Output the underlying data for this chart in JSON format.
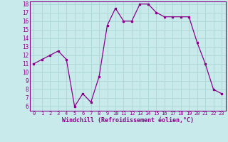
{
  "x": [
    0,
    1,
    2,
    3,
    4,
    5,
    6,
    7,
    8,
    9,
    10,
    11,
    12,
    13,
    14,
    15,
    16,
    17,
    18,
    19,
    20,
    21,
    22,
    23
  ],
  "y": [
    11,
    11.5,
    12,
    12.5,
    11.5,
    6,
    7.5,
    6.5,
    9.5,
    15.5,
    17.5,
    16,
    16,
    18,
    18,
    17,
    16.5,
    16.5,
    16.5,
    16.5,
    13.5,
    11,
    8,
    7.5
  ],
  "line_color": "#8b008b",
  "marker_color": "#8b008b",
  "bg_color": "#c8eaea",
  "grid_color": "#b0d8d8",
  "axis_bg": "#c8eaea",
  "xlabel": "Windchill (Refroidissement éolien,°C)",
  "xlabel_color": "#8b008b",
  "tick_color": "#8b008b",
  "spine_color": "#8b008b",
  "ylim_min": 5.5,
  "ylim_max": 18.3,
  "yticks": [
    6,
    7,
    8,
    9,
    10,
    11,
    12,
    13,
    14,
    15,
    16,
    17,
    18
  ],
  "xlim_min": -0.5,
  "xlim_max": 23.5,
  "xticks": [
    0,
    1,
    2,
    3,
    4,
    5,
    6,
    7,
    8,
    9,
    10,
    11,
    12,
    13,
    14,
    15,
    16,
    17,
    18,
    19,
    20,
    21,
    22,
    23
  ]
}
